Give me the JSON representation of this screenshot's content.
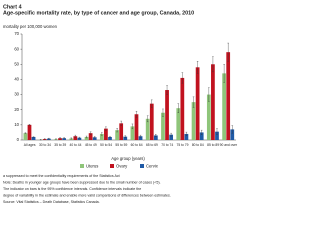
{
  "chart_data": {
    "type": "bar",
    "label": "Chart 4",
    "title": "Age-specific mortality rate, by type of cancer and age group, Canada, 2010",
    "ylabel": "mortality per 100,000 women",
    "xlabel": "Age group (years)",
    "categories": [
      "All ages",
      "30 to 34",
      "35 to 39",
      "40 to 44",
      "45 to 49",
      "50 to 54",
      "55 to 59",
      "60 to 64",
      "65 to 69",
      "70 to 74",
      "75 to 79",
      "80 to 84",
      "85 to 89",
      "90 and over"
    ],
    "series": [
      {
        "name": "Uterus",
        "color": "#8fc57a",
        "values": [
          4.5,
          0.2,
          0.5,
          1,
          2,
          4,
          6.5,
          9,
          14,
          18,
          21,
          25,
          30,
          44
        ],
        "errors": [
          0.3,
          0.2,
          0.3,
          0.4,
          0.6,
          0.9,
          1.2,
          1.6,
          2,
          2.5,
          3,
          3.5,
          4.5,
          6
        ]
      },
      {
        "name": "Ovary",
        "color": "#c1121f",
        "values": [
          10,
          0.6,
          1.2,
          2.5,
          4.5,
          7.5,
          11,
          17,
          24,
          33,
          41,
          48,
          50,
          58
        ],
        "errors": [
          0.4,
          0.3,
          0.5,
          0.7,
          0.9,
          1.2,
          1.5,
          2,
          2.5,
          3,
          3.5,
          4,
          5,
          6
        ]
      },
      {
        "name": "Cervix",
        "color": "#1f5aa6",
        "values": [
          2,
          0.9,
          1.2,
          1.5,
          1.8,
          2,
          2.2,
          2.5,
          3,
          3.5,
          4,
          5,
          5.5,
          7
        ],
        "errors": [
          0.2,
          0.3,
          0.4,
          0.4,
          0.5,
          0.5,
          0.6,
          0.7,
          0.8,
          1,
          1.2,
          1.5,
          2,
          2.5
        ]
      }
    ],
    "ylim": [
      0,
      70
    ],
    "yticks": [
      0,
      10,
      20,
      30,
      40,
      50,
      60,
      70
    ],
    "grid": false,
    "legend": "bottom",
    "footnotes": [
      "a  suppressed to meet the confidentiality requirements of the Statistics Act",
      "Note: Deaths in younger age groups have been suppressed due to the small number of cases (<5).",
      "The indicator on bars is the 95% confidence intervals. Confidence intervals indicate the",
      "degree of variability in the estimate and enable more valid comparisons of differences between estimates.",
      "Source: Vital Statistics – Death Database, Statistics Canada."
    ]
  }
}
